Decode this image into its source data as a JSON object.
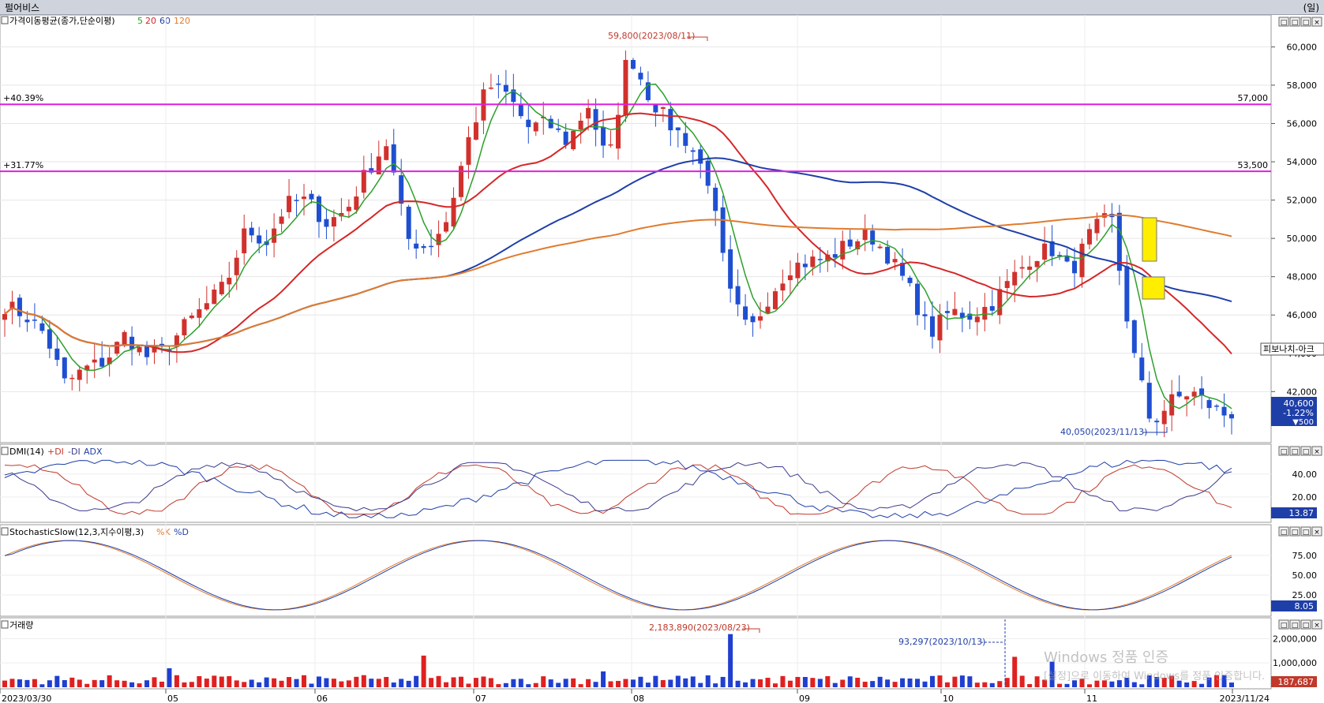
{
  "window": {
    "title": "펄어비스",
    "period_label": "(일)"
  },
  "panels": {
    "price": {
      "header": "가격이동평균(종가,단순이평)",
      "ma_labels": [
        "5",
        "20",
        "60",
        "120"
      ],
      "ma_colors": [
        "#2ca02c",
        "#d62728",
        "#1f3fa8",
        "#e07b2e"
      ]
    },
    "dmi": {
      "header": "DMI(14)",
      "legend": [
        "+DI",
        "-DI",
        "ADX"
      ],
      "legend_colors": [
        "#c0392b",
        "#3a3a8c",
        "#1f3fa8"
      ],
      "current": "13.87"
    },
    "stoch": {
      "header": "StochasticSlow(12,3,지수이평,3)",
      "legend": [
        "%K",
        "%D"
      ],
      "current": "8.05"
    },
    "volume": {
      "header": "거래량",
      "current": "187,687"
    }
  },
  "annotations": {
    "fib_label": "피보나치-아크",
    "high": "59,800(2023/08/11)",
    "low": "40,050(2023/11/13)",
    "vol_high": "2,183,890(2023/08/23)",
    "vol_marker": "93,297(2023/10/13)",
    "line1_left": "+40.39%",
    "line1_right": "57,000",
    "line2_left": "+31.77%",
    "line2_right": "53,500",
    "last_price": "40,600",
    "last_change": "-1.22%",
    "last_diff": "▼500"
  },
  "watermark": {
    "line1": "Windows 정품 인증",
    "line2": "[설정]으로 이동하여 Windows를 정품 인증합니다."
  },
  "panel_buttons": [
    "□",
    "□",
    "□",
    "×"
  ],
  "chart_data": {
    "type": "candlestick",
    "x_axis_labels": [
      "2023/03/30",
      "05",
      "06",
      "07",
      "08",
      "09",
      "10",
      "11",
      "2023/11/24"
    ],
    "price_axis": {
      "ticks": [
        "60,000",
        "58,000",
        "56,000",
        "54,000",
        "52,000",
        "50,000",
        "48,000",
        "46,000",
        "44,000",
        "42,000"
      ],
      "ylim": [
        39500,
        61500
      ]
    },
    "dmi_axis": {
      "ticks": [
        "40.00",
        "20.00"
      ]
    },
    "stoch_axis": {
      "ticks": [
        "75.00",
        "50.00",
        "25.00"
      ]
    },
    "volume_axis": {
      "ticks": [
        "2,000,000",
        "1,000,000"
      ]
    },
    "horizontal_lines": [
      {
        "value": 57000,
        "left_label": "+40.39%",
        "right_label": "57,000"
      },
      {
        "value": 53500,
        "left_label": "+31.77%",
        "right_label": "53,500"
      }
    ],
    "keypoints": [
      46500,
      46000,
      45000,
      42400,
      43200,
      43600,
      45000,
      43800,
      44200,
      45500,
      46500,
      47600,
      50500,
      49800,
      51800,
      52000,
      50800,
      51500,
      53500,
      55000,
      50000,
      49500,
      51000,
      55000,
      58000,
      57500,
      55800,
      56000,
      55000,
      57000,
      53800,
      59800,
      57500,
      56000,
      55000,
      53000,
      47200,
      45000,
      47000,
      48500,
      48800,
      49000,
      49800,
      50200,
      49000,
      47300,
      45000,
      46200,
      46000,
      46500,
      47800,
      49000,
      49500,
      48200,
      50300,
      51200,
      44500,
      40300,
      41500,
      42000,
      41200,
      40600
    ],
    "volume_highlights": [
      {
        "date": "2023/08/23",
        "value": 2183890
      },
      {
        "date": "2023/10/13",
        "value": 93297
      }
    ]
  }
}
